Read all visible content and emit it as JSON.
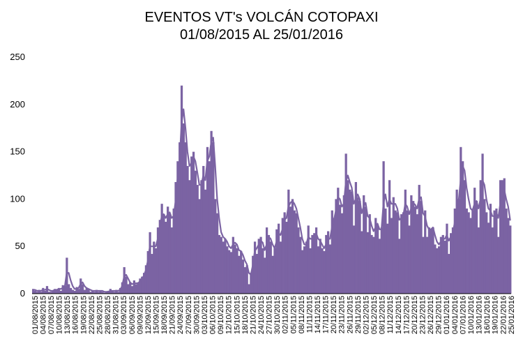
{
  "chart_data": {
    "type": "bar",
    "title": "EVENTOS  VT's  VOLCÁN COTOPAXI",
    "subtitle": "01/08/2015 AL 25/01/2016",
    "xlabel": "",
    "ylabel": "",
    "ylim": [
      0,
      250
    ],
    "yticks": [
      0,
      50,
      100,
      150,
      200,
      250
    ],
    "grid": false,
    "legend": "none",
    "bar_color": "#7b63a3",
    "line_color": "#7b63a3",
    "tick_labels": [
      "01/08/2015",
      "04/08/2015",
      "07/08/2015",
      "10/08/2015",
      "13/08/2015",
      "16/08/2015",
      "19/08/2015",
      "22/08/2015",
      "25/08/2015",
      "28/08/2015",
      "31/08/2015",
      "03/09/2015",
      "06/09/2015",
      "09/09/2015",
      "12/09/2015",
      "15/09/2015",
      "18/09/2015",
      "21/09/2015",
      "24/09/2015",
      "27/09/2015",
      "30/09/2015",
      "03/10/2015",
      "06/10/2015",
      "09/10/2015",
      "12/10/2015",
      "15/10/2015",
      "18/10/2015",
      "21/10/2015",
      "24/10/2015",
      "27/10/2015",
      "30/10/2015",
      "02/11/2015",
      "05/11/2015",
      "08/11/2015",
      "11/11/2015",
      "14/11/2015",
      "17/11/2015",
      "20/11/2015",
      "23/11/2015",
      "26/11/2015",
      "29/11/2015",
      "02/12/2015",
      "05/12/2015",
      "08/12/2015",
      "11/12/2015",
      "14/12/2015",
      "17/12/2015",
      "20/12/2015",
      "23/12/2015",
      "26/12/2015",
      "29/12/2015",
      "01/01/2016",
      "04/01/2016",
      "07/01/2016",
      "10/01/2016",
      "13/01/2016",
      "16/01/2016",
      "19/01/2016",
      "22/01/2016",
      "25/01/2016"
    ],
    "values": [
      5,
      3,
      2,
      4,
      2,
      6,
      3,
      8,
      2,
      2,
      3,
      5,
      4,
      6,
      3,
      9,
      8,
      38,
      10,
      6,
      4,
      3,
      7,
      5,
      16,
      10,
      4,
      6,
      5,
      2,
      3,
      2,
      4,
      2,
      3,
      2,
      1,
      2,
      3,
      5,
      3,
      2,
      4,
      2,
      6,
      12,
      28,
      18,
      10,
      12,
      8,
      14,
      10,
      12,
      16,
      18,
      22,
      30,
      45,
      65,
      42,
      55,
      48,
      70,
      78,
      95,
      84,
      76,
      92,
      85,
      70,
      90,
      118,
      140,
      160,
      220,
      180,
      160,
      135,
      120,
      145,
      150,
      130,
      115,
      100,
      120,
      135,
      110,
      155,
      140,
      172,
      160,
      100,
      85,
      62,
      60,
      55,
      58,
      50,
      46,
      44,
      60,
      52,
      48,
      40,
      45,
      36,
      28,
      30,
      10,
      22,
      40,
      55,
      42,
      58,
      60,
      48,
      38,
      70,
      62,
      55,
      40,
      48,
      68,
      74,
      55,
      80,
      86,
      76,
      110,
      92,
      100,
      88,
      85,
      70,
      60,
      46,
      50,
      55,
      72,
      48,
      62,
      64,
      70,
      50,
      58,
      48,
      45,
      62,
      66,
      52,
      88,
      80,
      100,
      112,
      94,
      85,
      104,
      148,
      120,
      110,
      108,
      72,
      118,
      102,
      98,
      66,
      104,
      92,
      65,
      84,
      62,
      60,
      80,
      72,
      58,
      70,
      140,
      90,
      74,
      120,
      80,
      102,
      88,
      86,
      58,
      84,
      86,
      110,
      88,
      72,
      104,
      98,
      92,
      84,
      115,
      98,
      60,
      88,
      60,
      70,
      68,
      70,
      52,
      48,
      50,
      60,
      62,
      56,
      74,
      42,
      64,
      70,
      90,
      110,
      100,
      155,
      140,
      120,
      90,
      86,
      80,
      88,
      112,
      98,
      70,
      120,
      148,
      100,
      86,
      75,
      95,
      70,
      88,
      90,
      60,
      120,
      120,
      122,
      90,
      80,
      72
    ],
    "moving_average": [
      4,
      4,
      3,
      3,
      3,
      4,
      4,
      5,
      4,
      3,
      3,
      4,
      4,
      5,
      5,
      6,
      7,
      22,
      22,
      14,
      8,
      5,
      5,
      6,
      10,
      12,
      8,
      6,
      5,
      4,
      3,
      3,
      3,
      3,
      3,
      3,
      2,
      2,
      2,
      3,
      3,
      3,
      3,
      3,
      4,
      8,
      18,
      20,
      16,
      12,
      10,
      11,
      11,
      11,
      13,
      16,
      19,
      25,
      35,
      50,
      50,
      50,
      50,
      58,
      70,
      82,
      84,
      80,
      84,
      86,
      80,
      82,
      98,
      122,
      140,
      180,
      195,
      175,
      150,
      135,
      138,
      145,
      140,
      128,
      115,
      115,
      125,
      120,
      140,
      145,
      160,
      165,
      135,
      100,
      80,
      65,
      60,
      58,
      55,
      50,
      48,
      52,
      54,
      52,
      46,
      45,
      41,
      35,
      31,
      22,
      20,
      30,
      45,
      48,
      52,
      56,
      54,
      46,
      52,
      60,
      58,
      52,
      48,
      55,
      64,
      62,
      68,
      78,
      80,
      92,
      96,
      98,
      95,
      90,
      80,
      70,
      58,
      52,
      52,
      60,
      58,
      58,
      60,
      64,
      58,
      56,
      52,
      48,
      52,
      58,
      58,
      70,
      78,
      88,
      102,
      100,
      92,
      95,
      118,
      125,
      118,
      112,
      95,
      100,
      105,
      100,
      85,
      92,
      96,
      82,
      80,
      72,
      66,
      70,
      74,
      68,
      68,
      95,
      105,
      92,
      100,
      95,
      95,
      95,
      90,
      78,
      80,
      82,
      95,
      92,
      84,
      90,
      96,
      94,
      90,
      100,
      102,
      85,
      82,
      72,
      68,
      68,
      70,
      62,
      55,
      52,
      55,
      58,
      58,
      62,
      56,
      60,
      64,
      75,
      90,
      98,
      120,
      135,
      130,
      112,
      100,
      90,
      88,
      95,
      98,
      90,
      100,
      120,
      115,
      100,
      90,
      88,
      82,
      82,
      86,
      80,
      95,
      105,
      110,
      100,
      92,
      78
    ]
  }
}
